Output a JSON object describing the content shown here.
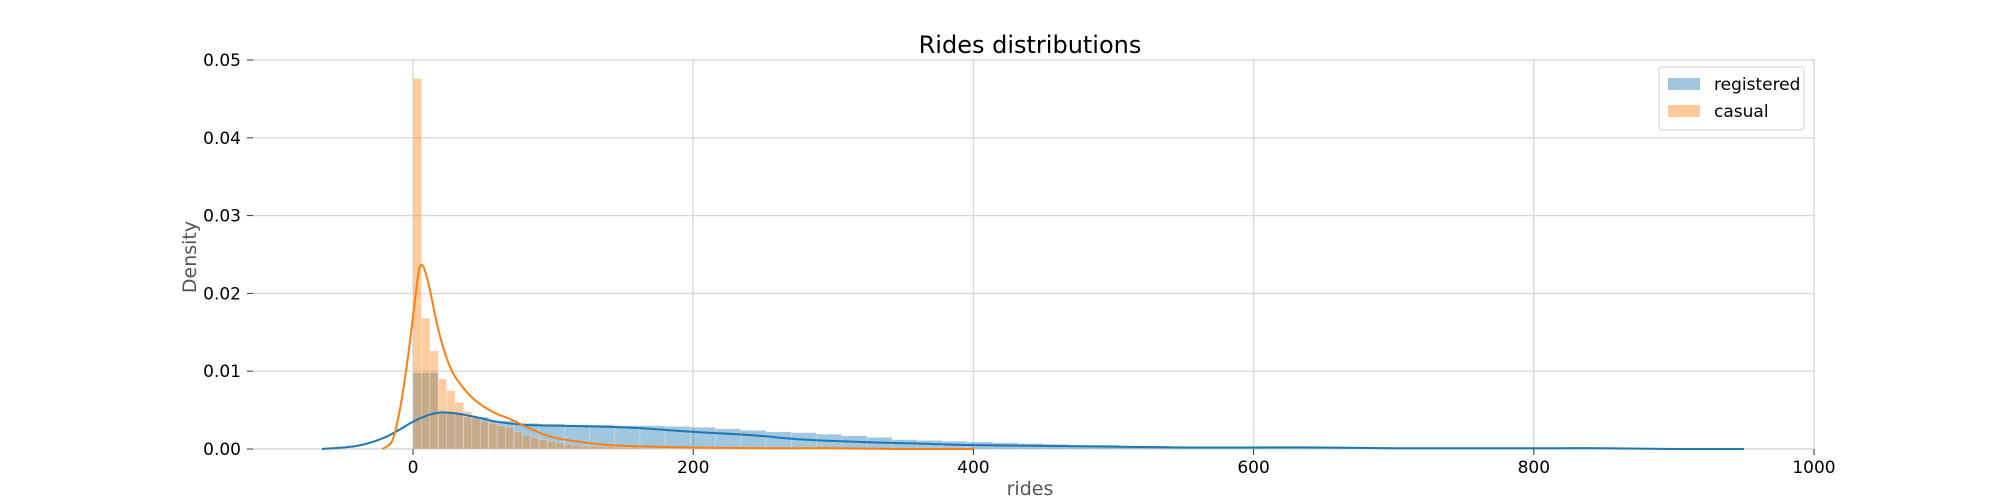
{
  "chart_data": {
    "type": "histogram",
    "title": "Rides distributions",
    "xlabel": "rides",
    "ylabel": "Density",
    "xlim": [
      -130,
      1000
    ],
    "ylim": [
      0,
      0.05
    ],
    "x_ticks": [
      0,
      200,
      400,
      600,
      800,
      1000
    ],
    "x_tick_labels": [
      "0",
      "200",
      "400",
      "600",
      "800",
      "1000"
    ],
    "y_ticks": [
      0,
      0.01,
      0.02,
      0.03,
      0.04,
      0.05
    ],
    "y_tick_labels": [
      "0.00",
      "0.01",
      "0.02",
      "0.03",
      "0.04",
      "0.05"
    ],
    "grid": true,
    "legend_position": "top-right",
    "series": [
      {
        "name": "registered",
        "color": "#1f77b4",
        "bin_width": 18,
        "bin_start": 0,
        "hist_values": [
          0.0098,
          0.0046,
          0.0041,
          0.0036,
          0.0033,
          0.0032,
          0.0031,
          0.0031,
          0.003,
          0.003,
          0.0029,
          0.0028,
          0.0026,
          0.0024,
          0.0022,
          0.0021,
          0.0019,
          0.0017,
          0.0015,
          0.0012,
          0.0011,
          0.001,
          0.0009,
          0.0008,
          0.0007,
          0.0006,
          0.0005,
          0.0005,
          0.0004,
          0.0004,
          0.0003,
          0.0003,
          0.0003,
          0.0002,
          0.0002,
          0.0002,
          0.0002,
          0.0001,
          0.0001,
          0.0001,
          0.0001,
          0.0001,
          0.0001,
          0.0001,
          0.0001,
          0.0001,
          0.0001,
          0.0001,
          0.0001,
          0.0001,
          0.0001,
          0.0001
        ],
        "kde_x": [
          -65,
          -40,
          -20,
          0,
          10,
          20,
          30,
          45,
          60,
          80,
          100,
          130,
          160,
          200,
          240,
          280,
          320,
          360,
          400,
          450,
          500,
          550,
          600,
          650,
          700,
          750,
          800,
          850,
          900,
          950
        ],
        "kde_y": [
          0.0,
          0.0004,
          0.0015,
          0.0035,
          0.0043,
          0.0047,
          0.0046,
          0.0041,
          0.0035,
          0.0031,
          0.003,
          0.0029,
          0.0027,
          0.0022,
          0.0018,
          0.0012,
          0.0009,
          0.0007,
          0.0005,
          0.0004,
          0.0003,
          0.0002,
          0.0002,
          0.0002,
          0.0001,
          0.0001,
          0.0001,
          0.0001,
          0.0,
          0.0
        ]
      },
      {
        "name": "casual",
        "color": "#ff7f0e",
        "bin_width": 6,
        "bin_start": 0,
        "hist_values": [
          0.0476,
          0.0168,
          0.0126,
          0.009,
          0.0075,
          0.006,
          0.0048,
          0.004,
          0.0036,
          0.0033,
          0.003,
          0.0028,
          0.0022,
          0.0018,
          0.0015,
          0.0012,
          0.001,
          0.0008,
          0.0006,
          0.0005,
          0.0004,
          0.0004,
          0.0003,
          0.0003,
          0.0002,
          0.0002,
          0.0002,
          0.0001,
          0.0001,
          0.0001,
          0.0001,
          0.0001,
          0.0001,
          0.0001,
          0.0001,
          0.0001,
          0.0001,
          0.0001,
          0.0001,
          0.0001,
          0.0001,
          0.0001,
          0.0001,
          0.0001,
          0.0001,
          0.0001,
          0.0001,
          0.0001,
          0.0001,
          0.0001,
          0.0001,
          0.0001,
          0.0001,
          0.0001,
          0.0001,
          0.0001,
          0.0001,
          0.0001,
          0.0001,
          0.0001,
          0.0001,
          0.0001,
          0.0001,
          0.0001,
          0.0001,
          0.0001
        ],
        "kde_x": [
          -22,
          -15,
          -10,
          -5,
          0,
          3,
          5,
          8,
          12,
          16,
          20,
          25,
          30,
          40,
          50,
          60,
          70,
          85,
          100,
          120,
          140,
          170,
          200,
          250,
          300,
          350,
          400
        ],
        "kde_y": [
          0.0,
          0.001,
          0.0045,
          0.01,
          0.017,
          0.0215,
          0.0235,
          0.0232,
          0.0205,
          0.017,
          0.014,
          0.0112,
          0.0093,
          0.007,
          0.0055,
          0.0045,
          0.0038,
          0.0025,
          0.0015,
          0.0009,
          0.0005,
          0.0003,
          0.0002,
          0.0001,
          0.0001,
          0.0,
          0.0
        ]
      }
    ]
  }
}
